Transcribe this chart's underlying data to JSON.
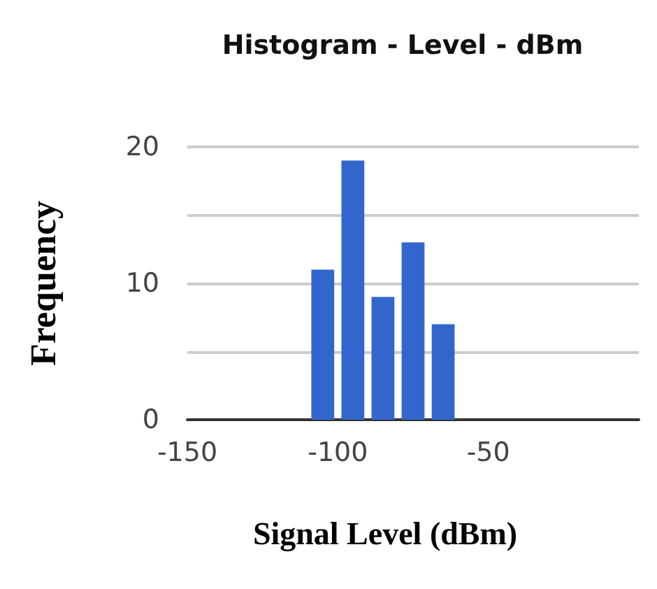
{
  "chart_data": {
    "type": "histogram",
    "title": "Histogram - Level - dBm",
    "xlabel": "Signal Level (dBm)",
    "ylabel": "Frequency",
    "bins": [
      -150,
      -140,
      -130,
      -120,
      -110,
      -100,
      -90,
      -80,
      -70,
      -60,
      -50,
      -40,
      -30,
      -20
    ],
    "values": [
      0,
      0,
      0,
      0,
      11,
      19,
      9,
      13,
      7,
      0,
      0,
      0,
      0
    ],
    "color": "#3366cc",
    "xlim": [
      -150,
      0
    ],
    "xticks": [
      -150,
      -100,
      -50
    ],
    "ylim": [
      0,
      20
    ],
    "yticks": [
      0,
      {
        "value": 5,
        "label": null
      },
      10,
      {
        "value": 15,
        "label": null
      },
      20
    ],
    "grid": "y"
  }
}
